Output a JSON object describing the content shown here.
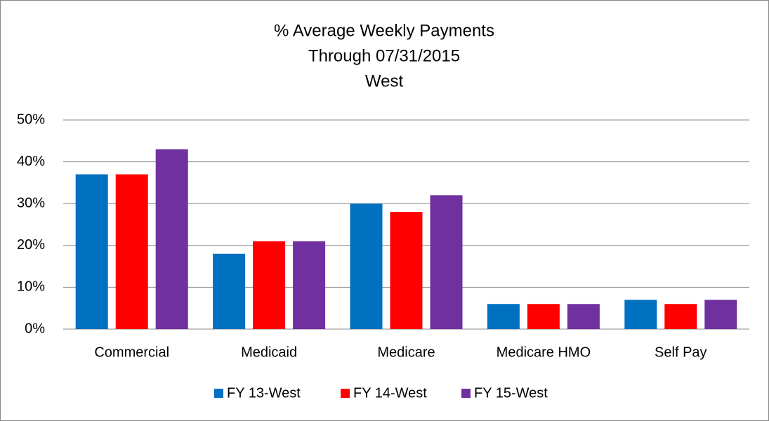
{
  "chart_data": {
    "type": "bar",
    "title": [
      "% Average Weekly Payments",
      "Through 07/31/2015",
      "West"
    ],
    "categories": [
      "Commercial",
      "Medicaid",
      "Medicare",
      "Medicare HMO",
      "Self Pay"
    ],
    "series": [
      {
        "name": "FY 13-West",
        "color": "#0070c0",
        "values": [
          37,
          18,
          30,
          6,
          7
        ]
      },
      {
        "name": "FY 14-West",
        "color": "#ff0000",
        "values": [
          37,
          21,
          28,
          6,
          6
        ]
      },
      {
        "name": "FY 15-West",
        "color": "#7030a0",
        "values": [
          43,
          21,
          32,
          6,
          7
        ]
      }
    ],
    "ylim": [
      0,
      50
    ],
    "yticks": [
      {
        "value": 0,
        "label": "0%"
      },
      {
        "value": 10,
        "label": "10%"
      },
      {
        "value": 20,
        "label": "20%"
      },
      {
        "value": 30,
        "label": "30%"
      },
      {
        "value": 40,
        "label": "40%"
      },
      {
        "value": 50,
        "label": "50%"
      }
    ],
    "grid": true,
    "legend": "bottom"
  }
}
